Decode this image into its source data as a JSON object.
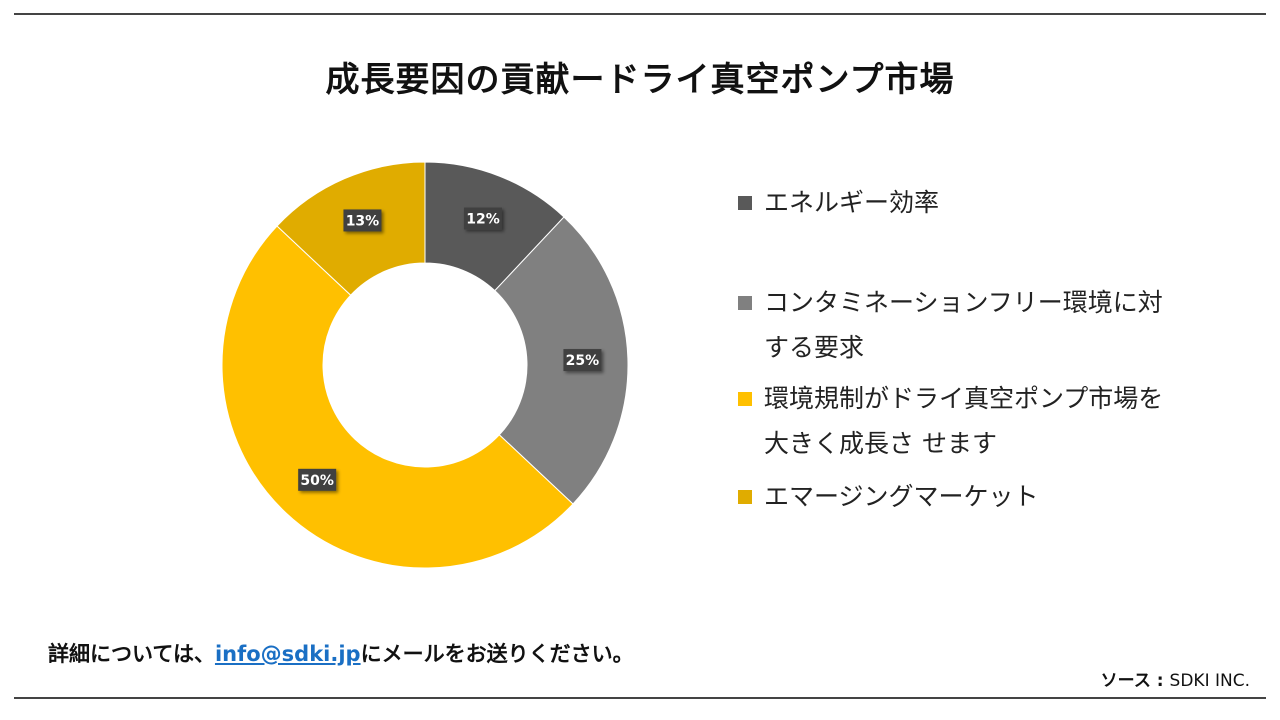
{
  "chart_data": {
    "type": "pie",
    "title": "成長要因の貢献ードライ真空ポンプ市場",
    "categories": [
      "エネルギー効率",
      "コンタミネーションフリー環境に対する要求",
      "環境規制がドライ真空ポンプ市場を大きく成長さ せます",
      "エマージングマーケット"
    ],
    "values": [
      12,
      25,
      50,
      13
    ],
    "labels": [
      "12%",
      "25%",
      "50%",
      "13%"
    ],
    "colors": [
      "#595959",
      "#808080",
      "#FFC000",
      "#E0AC00"
    ],
    "donut": true,
    "legend": "right"
  },
  "footer": {
    "note_prefix": "詳細については、",
    "email": "info@sdki.jp",
    "note_suffix": "にメールをお送りください。"
  },
  "source": {
    "label": "ソース :",
    "value": "SDKI INC."
  }
}
